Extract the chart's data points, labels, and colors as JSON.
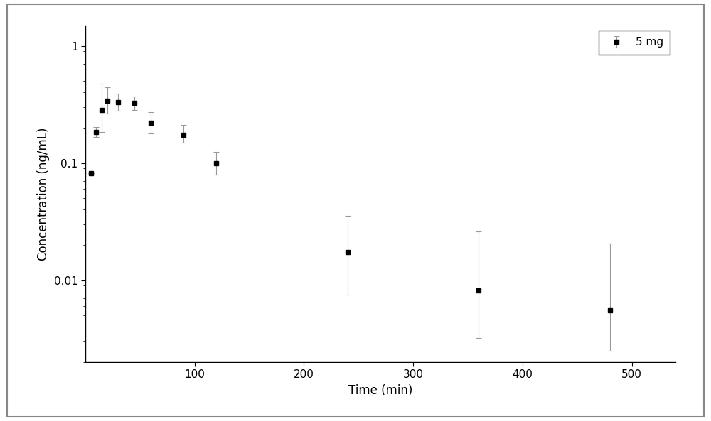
{
  "x": [
    5,
    10,
    15,
    20,
    30,
    45,
    60,
    90,
    120,
    240,
    360,
    480
  ],
  "y": [
    0.082,
    0.185,
    0.285,
    0.34,
    0.33,
    0.325,
    0.22,
    0.175,
    0.1,
    0.0175,
    0.0082,
    0.0055
  ],
  "yerr_upper": [
    0.0,
    0.018,
    0.19,
    0.1,
    0.06,
    0.045,
    0.05,
    0.035,
    0.025,
    0.018,
    0.018,
    0.015
  ],
  "yerr_lower": [
    0.0,
    0.018,
    0.1,
    0.075,
    0.05,
    0.04,
    0.04,
    0.025,
    0.02,
    0.01,
    0.005,
    0.003
  ],
  "xlabel": "Time (min)",
  "ylabel": "Concentration (ng/mL)",
  "legend_label": "5 mg",
  "line_color": "#000000",
  "ecolor": "#999999",
  "marker": "s",
  "marker_size": 5,
  "line_width": 1.2,
  "xlim": [
    0,
    540
  ],
  "ylim_log": [
    0.002,
    1.5
  ],
  "yticks": [
    0.01,
    0.1,
    1
  ],
  "ytick_labels": [
    "0.01",
    "0.1",
    "1"
  ],
  "xticks": [
    100,
    200,
    300,
    400,
    500
  ],
  "background_color": "#ffffff",
  "capsize": 3,
  "capthick": 0.8,
  "elinewidth": 0.8,
  "outer_border_color": "#aaaaaa",
  "legend_fontsize": 11,
  "axis_fontsize": 12,
  "tick_labelsize": 11
}
